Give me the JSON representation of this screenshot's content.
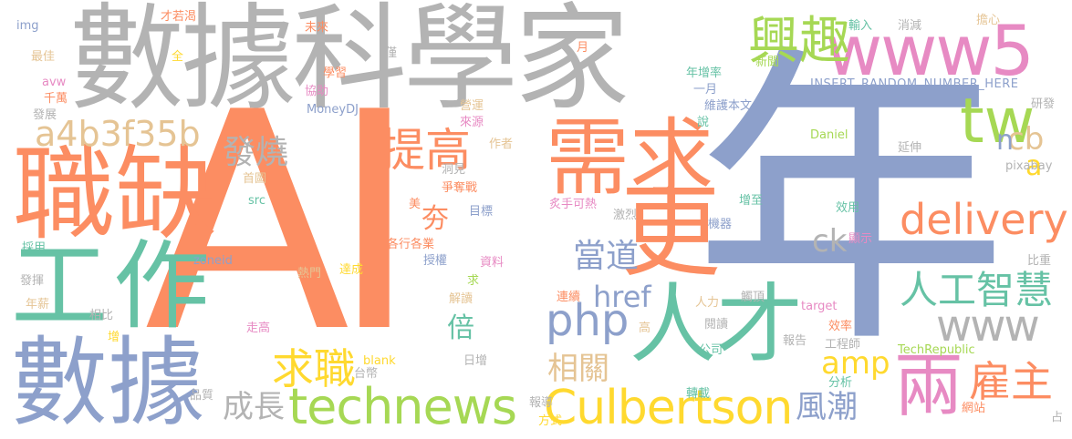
{
  "colors": {
    "background": "#ffffff",
    "palette": [
      "#66c2a5",
      "#fc8d62",
      "#8da0cb",
      "#e78ac3",
      "#a6d854",
      "#ffd92f",
      "#e5c494",
      "#b3b3b3"
    ]
  },
  "words": [
    {
      "id": "ai",
      "text": "AI",
      "color": "#fc8d62"
    },
    {
      "id": "nian",
      "text": "年",
      "color": "#8da0cb"
    },
    {
      "id": "data-scientist",
      "text": "數據科學家",
      "color": "#b3b3b3"
    },
    {
      "id": "zhique",
      "text": "職缺",
      "color": "#fc8d62"
    },
    {
      "id": "xuqiu",
      "text": "需求",
      "color": "#fc8d62"
    },
    {
      "id": "gong",
      "text": "工",
      "color": "#66c2a5"
    },
    {
      "id": "zuo",
      "text": "作",
      "color": "#66c2a5"
    },
    {
      "id": "shuju",
      "text": "數據",
      "color": "#8da0cb"
    },
    {
      "id": "geng",
      "text": "更",
      "color": "#fc8d62"
    },
    {
      "id": "rencai",
      "text": "人才",
      "color": "#66c2a5"
    },
    {
      "id": "www5",
      "text": "www5",
      "color": "#e78ac3"
    },
    {
      "id": "xingqu",
      "text": "興趣",
      "color": "#a6d854"
    },
    {
      "id": "delivery",
      "text": "delivery",
      "color": "#fc8d62"
    },
    {
      "id": "technews",
      "text": "technews",
      "color": "#a6d854"
    },
    {
      "id": "culbertson",
      "text": "Culbertson",
      "color": "#ffd92f"
    },
    {
      "id": "liang",
      "text": "兩",
      "color": "#e78ac3"
    },
    {
      "id": "www",
      "text": "www",
      "color": "#b3b3b3"
    },
    {
      "id": "tw",
      "text": "tw",
      "color": "#a6d854"
    },
    {
      "id": "php",
      "text": "php",
      "color": "#8da0cb"
    },
    {
      "id": "a4b3f35b",
      "text": "a4b3f35b",
      "color": "#e5c494"
    },
    {
      "id": "tigao",
      "text": "提高",
      "color": "#fc8d62"
    },
    {
      "id": "rengong",
      "text": "人工智慧",
      "color": "#66c2a5"
    },
    {
      "id": "qiuzhi",
      "text": "求職",
      "color": "#ffd92f"
    },
    {
      "id": "guzhu",
      "text": "雇主",
      "color": "#fc8d62"
    },
    {
      "id": "fashao",
      "text": "發燒",
      "color": "#b3b3b3"
    },
    {
      "id": "dangdao",
      "text": "當道",
      "color": "#8da0cb"
    },
    {
      "id": "chengzhang",
      "text": "成長",
      "color": "#b3b3b3"
    },
    {
      "id": "fengchao",
      "text": "風潮",
      "color": "#8da0cb"
    },
    {
      "id": "xiangguan",
      "text": "相關",
      "color": "#e5c494"
    },
    {
      "id": "amp",
      "text": "amp",
      "color": "#ffd92f"
    },
    {
      "id": "href",
      "text": "href",
      "color": "#8da0cb"
    },
    {
      "id": "ck",
      "text": "ck",
      "color": "#b3b3b3"
    },
    {
      "id": "cb",
      "text": "cb",
      "color": "#e5c494"
    },
    {
      "id": "n",
      "text": "n",
      "color": "#8da0cb"
    },
    {
      "id": "a",
      "text": "a",
      "color": "#ffd92f"
    },
    {
      "id": "bei",
      "text": "倍",
      "color": "#66c2a5"
    },
    {
      "id": "kua",
      "text": "夯",
      "color": "#fc8d62"
    },
    {
      "id": "insert",
      "text": "INSERT_RANDOM_NUMBER_HERE",
      "color": "#8da0cb"
    },
    {
      "id": "moneydj",
      "text": "MoneyDJ",
      "color": "#8da0cb"
    },
    {
      "id": "techrepublic",
      "text": "TechRepublic",
      "color": "#a6d854"
    },
    {
      "id": "daniel",
      "text": "Daniel",
      "color": "#a6d854"
    },
    {
      "id": "pixabay",
      "text": "pixabay",
      "color": "#b3b3b3"
    },
    {
      "id": "zoneid",
      "text": "zoneid",
      "color": "#8da0cb"
    },
    {
      "id": "target",
      "text": "target",
      "color": "#e78ac3"
    },
    {
      "id": "blank",
      "text": "blank",
      "color": "#ffd92f"
    },
    {
      "id": "src",
      "text": "src",
      "color": "#66c2a5"
    },
    {
      "id": "img",
      "text": "img",
      "color": "#8da0cb"
    },
    {
      "id": "avw",
      "text": "avw",
      "color": "#e78ac3"
    },
    {
      "id": "qianwan",
      "text": "千萬",
      "color": "#fc8d62"
    },
    {
      "id": "zuijia",
      "text": "最佳",
      "color": "#e5c494"
    },
    {
      "id": "fazhan",
      "text": "發展",
      "color": "#b3b3b3"
    },
    {
      "id": "cairuoke",
      "text": "才若渴",
      "color": "#fc8d62"
    },
    {
      "id": "quan",
      "text": "全",
      "color": "#ffd92f"
    },
    {
      "id": "weilai",
      "text": "未來",
      "color": "#fc8d62"
    },
    {
      "id": "jin",
      "text": "僅",
      "color": "#b3b3b3"
    },
    {
      "id": "xuexi",
      "text": "學習",
      "color": "#fc8d62"
    },
    {
      "id": "xiezhu",
      "text": "協助",
      "color": "#e78ac3"
    },
    {
      "id": "yingyun",
      "text": "營運",
      "color": "#e5c494"
    },
    {
      "id": "laiyuan",
      "text": "來源",
      "color": "#e78ac3"
    },
    {
      "id": "yue",
      "text": "月",
      "color": "#fc8d62"
    },
    {
      "id": "nianzeng",
      "text": "年增率",
      "color": "#66c2a5"
    },
    {
      "id": "yiyue",
      "text": "一月",
      "color": "#8da0cb"
    },
    {
      "id": "shuru",
      "text": "輸入",
      "color": "#66c2a5"
    },
    {
      "id": "xiaojian",
      "text": "消減",
      "color": "#b3b3b3"
    },
    {
      "id": "danxin",
      "text": "擔心",
      "color": "#e5c494"
    },
    {
      "id": "xinwen",
      "text": "新聞",
      "color": "#a6d854"
    },
    {
      "id": "weihu",
      "text": "維護本文",
      "color": "#8da0cb"
    },
    {
      "id": "shuo",
      "text": "說",
      "color": "#66c2a5"
    },
    {
      "id": "yanfa",
      "text": "研發",
      "color": "#b3b3b3"
    },
    {
      "id": "yanshen",
      "text": "延伸",
      "color": "#b3b3b3"
    },
    {
      "id": "zuozhe",
      "text": "作者",
      "color": "#e5c494"
    },
    {
      "id": "shoutu",
      "text": "首圖",
      "color": "#e5c494"
    },
    {
      "id": "dongjian",
      "text": "洞見",
      "color": "#b3b3b3"
    },
    {
      "id": "zhengduo",
      "text": "爭奪戰",
      "color": "#fc8d62"
    },
    {
      "id": "mei",
      "text": "美",
      "color": "#fc8d62"
    },
    {
      "id": "mubiao",
      "text": "目標",
      "color": "#8da0cb"
    },
    {
      "id": "jilie",
      "text": "激烈",
      "color": "#b3b3b3"
    },
    {
      "id": "jiqi",
      "text": "機器",
      "color": "#8da0cb"
    },
    {
      "id": "zengzhi",
      "text": "增至",
      "color": "#66c2a5"
    },
    {
      "id": "xiaoyong",
      "text": "效用",
      "color": "#66c2a5"
    },
    {
      "id": "xianshi",
      "text": "顯示",
      "color": "#e78ac3"
    },
    {
      "id": "caiyong",
      "text": "採用",
      "color": "#66c2a5"
    },
    {
      "id": "gexing",
      "text": "各行各業",
      "color": "#fc8d62"
    },
    {
      "id": "zhiyuan",
      "text": "炙手可熱",
      "color": "#e78ac3"
    },
    {
      "id": "shouquan",
      "text": "授權",
      "color": "#8da0cb"
    },
    {
      "id": "ziliao",
      "text": "資料",
      "color": "#e78ac3"
    },
    {
      "id": "qiu",
      "text": "求",
      "color": "#a6d854"
    },
    {
      "id": "redmen",
      "text": "熱門",
      "color": "#e5c494"
    },
    {
      "id": "dacheng",
      "text": "達成",
      "color": "#ffd92f"
    },
    {
      "id": "fahui",
      "text": "發揮",
      "color": "#b3b3b3"
    },
    {
      "id": "nianxin",
      "text": "年薪",
      "color": "#e5c494"
    },
    {
      "id": "xiangbi",
      "text": "相比",
      "color": "#b3b3b3"
    },
    {
      "id": "jiedu",
      "text": "解讀",
      "color": "#e5c494"
    },
    {
      "id": "lianxu",
      "text": "連續",
      "color": "#fc8d62"
    },
    {
      "id": "renli",
      "text": "人力",
      "color": "#e5c494"
    },
    {
      "id": "chuding",
      "text": "觸頂",
      "color": "#b3b3b3"
    },
    {
      "id": "zougao",
      "text": "走高",
      "color": "#e78ac3"
    },
    {
      "id": "gao",
      "text": "高",
      "color": "#e5c494"
    },
    {
      "id": "yuedu",
      "text": "閱讀",
      "color": "#b3b3b3"
    },
    {
      "id": "xiaolv",
      "text": "效率",
      "color": "#fc8d62"
    },
    {
      "id": "bizhong",
      "text": "比重",
      "color": "#b3b3b3"
    },
    {
      "id": "zeng",
      "text": "增",
      "color": "#ffd92f"
    },
    {
      "id": "taibi",
      "text": "台幣",
      "color": "#b3b3b3"
    },
    {
      "id": "pinzhi",
      "text": "品質",
      "color": "#b3b3b3"
    },
    {
      "id": "rizeng",
      "text": "日增",
      "color": "#b3b3b3"
    },
    {
      "id": "baodao",
      "text": "報導",
      "color": "#b3b3b3"
    },
    {
      "id": "fangshi",
      "text": "方式",
      "color": "#ffd92f"
    },
    {
      "id": "zhuanzai",
      "text": "轉載",
      "color": "#66c2a5"
    },
    {
      "id": "gongsi",
      "text": "公司",
      "color": "#66c2a5"
    },
    {
      "id": "baogao",
      "text": "報告",
      "color": "#b3b3b3"
    },
    {
      "id": "gongchengshi",
      "text": "工程師",
      "color": "#b3b3b3"
    },
    {
      "id": "fenxi",
      "text": "分析",
      "color": "#66c2a5"
    },
    {
      "id": "wangzhan",
      "text": "網站",
      "color": "#fc8d62"
    },
    {
      "id": "zhan",
      "text": "占",
      "color": "#b3b3b3"
    }
  ]
}
